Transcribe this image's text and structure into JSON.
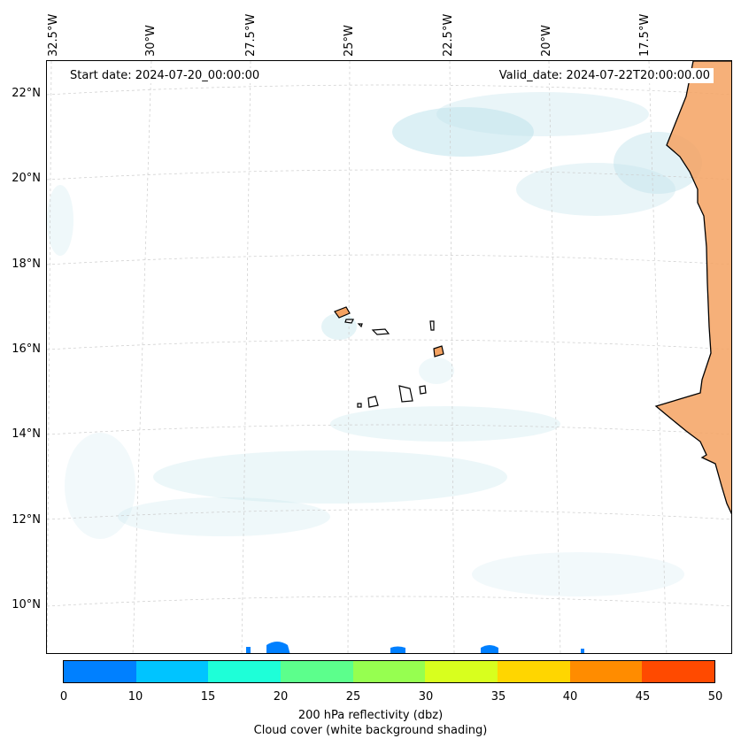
{
  "map": {
    "start_date_label": "Start date: 2024-07-20_00:00:00",
    "valid_date_label": "Valid_date: 2024-07-22T20:00:00.00",
    "longitude_labels": [
      "32.5°W",
      "30°W",
      "27.5°W",
      "25°W",
      "22.5°W",
      "20°W",
      "17.5°W"
    ],
    "latitude_labels": [
      "22°N",
      "20°N",
      "18°N",
      "16°N",
      "14°N",
      "12°N",
      "10°N"
    ],
    "land_color": "#f4a261",
    "cloud_color": "#bfe3ec"
  },
  "colorbar": {
    "ticks": [
      "0",
      "10",
      "15",
      "20",
      "25",
      "30",
      "35",
      "40",
      "45",
      "50"
    ],
    "colors": [
      "#0080ff",
      "#00c4ff",
      "#1effd8",
      "#5cff8c",
      "#96ff50",
      "#d8ff1e",
      "#ffd600",
      "#ff8c00",
      "#ff4a00"
    ],
    "title": "200 hPa reflectivity (dbz)",
    "subtitle": "Cloud cover (white background shading)"
  }
}
